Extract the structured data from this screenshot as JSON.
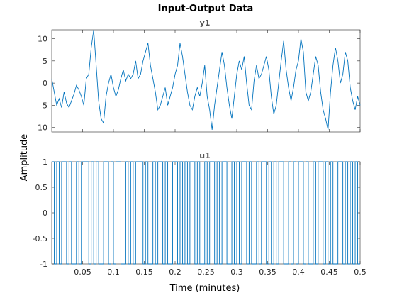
{
  "chart_data": {
    "type": "line",
    "title": "Input-Output Data",
    "xlabel": "Time (minutes)",
    "ylabel": "Amplitude",
    "xlim": [
      0,
      0.5
    ],
    "xticks": [
      "0.05",
      "0.1",
      "0.15",
      "0.2",
      "0.25",
      "0.3",
      "0.35",
      "0.4",
      "0.45",
      "0.5"
    ],
    "grid": false,
    "color": "#0072BD",
    "axes": [
      {
        "title": "y1",
        "ylim": [
          -11,
          12
        ],
        "yticks": [
          "10",
          "5",
          "0",
          "-5",
          "-10"
        ],
        "series": [
          {
            "style": "line",
            "x": [
              0.0,
              0.004,
              0.008,
              0.012,
              0.016,
              0.02,
              0.024,
              0.028,
              0.032,
              0.036,
              0.04,
              0.044,
              0.048,
              0.052,
              0.056,
              0.06,
              0.064,
              0.068,
              0.072,
              0.076,
              0.08,
              0.084,
              0.088,
              0.092,
              0.096,
              0.1,
              0.104,
              0.108,
              0.112,
              0.116,
              0.12,
              0.124,
              0.128,
              0.132,
              0.136,
              0.14,
              0.144,
              0.148,
              0.152,
              0.156,
              0.16,
              0.164,
              0.168,
              0.172,
              0.176,
              0.18,
              0.184,
              0.188,
              0.192,
              0.196,
              0.2,
              0.204,
              0.208,
              0.212,
              0.216,
              0.22,
              0.224,
              0.228,
              0.232,
              0.236,
              0.24,
              0.244,
              0.248,
              0.252,
              0.256,
              0.26,
              0.264,
              0.268,
              0.272,
              0.276,
              0.28,
              0.284,
              0.288,
              0.292,
              0.296,
              0.3,
              0.304,
              0.308,
              0.312,
              0.316,
              0.32,
              0.324,
              0.328,
              0.332,
              0.336,
              0.34,
              0.344,
              0.348,
              0.352,
              0.356,
              0.36,
              0.364,
              0.368,
              0.372,
              0.376,
              0.38,
              0.384,
              0.388,
              0.392,
              0.396,
              0.4,
              0.404,
              0.408,
              0.412,
              0.416,
              0.42,
              0.424,
              0.428,
              0.432,
              0.436,
              0.44,
              0.444,
              0.448,
              0.452,
              0.456,
              0.46,
              0.464,
              0.468,
              0.472,
              0.476,
              0.48,
              0.484,
              0.488,
              0.492,
              0.496,
              0.5
            ],
            "y": [
              1.0,
              -2.0,
              -5.0,
              -3.5,
              -5.5,
              -2.0,
              -4.5,
              -5.5,
              -4.0,
              -2.5,
              -0.5,
              -1.5,
              -3.0,
              -5.0,
              1.0,
              2.0,
              8.0,
              12.0,
              4.0,
              -4.0,
              -8.0,
              -9.0,
              -3.0,
              0.0,
              2.0,
              -1.0,
              -3.0,
              -1.5,
              1.0,
              3.0,
              0.5,
              2.0,
              1.0,
              2.0,
              5.0,
              1.0,
              2.0,
              5.0,
              7.0,
              9.0,
              4.0,
              1.0,
              -2.0,
              -6.0,
              -5.0,
              -3.0,
              -1.0,
              -5.0,
              -3.0,
              -1.0,
              2.0,
              4.0,
              9.0,
              6.0,
              2.0,
              -2.0,
              -5.0,
              -6.0,
              -3.0,
              -1.0,
              -3.0,
              0.0,
              4.0,
              -3.0,
              -6.0,
              -10.5,
              -5.0,
              -1.0,
              3.0,
              7.0,
              4.0,
              -1.0,
              -5.0,
              -8.0,
              -3.0,
              2.0,
              5.0,
              3.0,
              6.0,
              0.0,
              -5.0,
              -6.0,
              0.5,
              4.0,
              1.0,
              2.0,
              4.0,
              6.0,
              3.0,
              -3.0,
              -7.0,
              -5.0,
              0.0,
              5.0,
              9.5,
              3.0,
              -1.0,
              -4.0,
              -1.0,
              3.0,
              5.0,
              10.0,
              7.0,
              -2.0,
              -4.0,
              -2.0,
              2.0,
              6.0,
              4.0,
              -2.0,
              -6.0,
              -8.0,
              -10.5,
              -2.0,
              4.0,
              8.0,
              5.0,
              0.0,
              2.0,
              7.0,
              5.0,
              -1.0,
              -4.0,
              -6.0,
              -3.0,
              -5.0
            ]
          }
        ]
      },
      {
        "title": "u1",
        "ylim": [
          -1,
          1
        ],
        "yticks": [
          "1",
          "0.5",
          "0",
          "-0.5",
          "-1"
        ],
        "series": [
          {
            "style": "step",
            "x": [
              0.0,
              0.004,
              0.008,
              0.012,
              0.016,
              0.02,
              0.024,
              0.028,
              0.032,
              0.036,
              0.04,
              0.044,
              0.048,
              0.052,
              0.056,
              0.06,
              0.064,
              0.068,
              0.072,
              0.076,
              0.08,
              0.084,
              0.088,
              0.092,
              0.096,
              0.1,
              0.104,
              0.108,
              0.112,
              0.116,
              0.12,
              0.124,
              0.128,
              0.132,
              0.136,
              0.14,
              0.144,
              0.148,
              0.152,
              0.156,
              0.16,
              0.164,
              0.168,
              0.172,
              0.176,
              0.18,
              0.184,
              0.188,
              0.192,
              0.196,
              0.2,
              0.204,
              0.208,
              0.212,
              0.216,
              0.22,
              0.224,
              0.228,
              0.232,
              0.236,
              0.24,
              0.244,
              0.248,
              0.252,
              0.256,
              0.26,
              0.264,
              0.268,
              0.272,
              0.276,
              0.28,
              0.284,
              0.288,
              0.292,
              0.296,
              0.3,
              0.304,
              0.308,
              0.312,
              0.316,
              0.32,
              0.324,
              0.328,
              0.332,
              0.336,
              0.34,
              0.344,
              0.348,
              0.352,
              0.356,
              0.36,
              0.364,
              0.368,
              0.372,
              0.376,
              0.38,
              0.384,
              0.388,
              0.392,
              0.396,
              0.4,
              0.404,
              0.408,
              0.412,
              0.416,
              0.42,
              0.424,
              0.428,
              0.432,
              0.436,
              0.44,
              0.444,
              0.448,
              0.452,
              0.456,
              0.46,
              0.464,
              0.468,
              0.472,
              0.476,
              0.48,
              0.484,
              0.488,
              0.492,
              0.496
            ],
            "y": [
              1,
              -1,
              1,
              -1,
              1,
              1,
              -1,
              1,
              -1,
              -1,
              1,
              -1,
              1,
              1,
              1,
              -1,
              1,
              -1,
              1,
              -1,
              -1,
              1,
              1,
              -1,
              1,
              -1,
              1,
              1,
              -1,
              -1,
              1,
              -1,
              1,
              -1,
              1,
              1,
              1,
              -1,
              1,
              -1,
              -1,
              1,
              -1,
              1,
              1,
              -1,
              1,
              -1,
              -1,
              1,
              1,
              -1,
              1,
              -1,
              1,
              -1,
              1,
              1,
              -1,
              1,
              -1,
              -1,
              1,
              -1,
              1,
              1,
              -1,
              1,
              -1,
              1,
              1,
              -1,
              -1,
              1,
              -1,
              1,
              -1,
              1,
              1,
              -1,
              1,
              -1,
              -1,
              1,
              -1,
              1,
              1,
              -1,
              1,
              -1,
              1,
              -1,
              1,
              1,
              -1,
              -1,
              1,
              -1,
              1,
              -1,
              1,
              1,
              -1,
              1,
              -1,
              -1,
              1,
              -1,
              1,
              1,
              -1,
              1,
              -1,
              1,
              -1,
              -1,
              1,
              1,
              -1,
              1,
              -1,
              1,
              -1,
              1,
              -1
            ]
          }
        ]
      }
    ]
  }
}
